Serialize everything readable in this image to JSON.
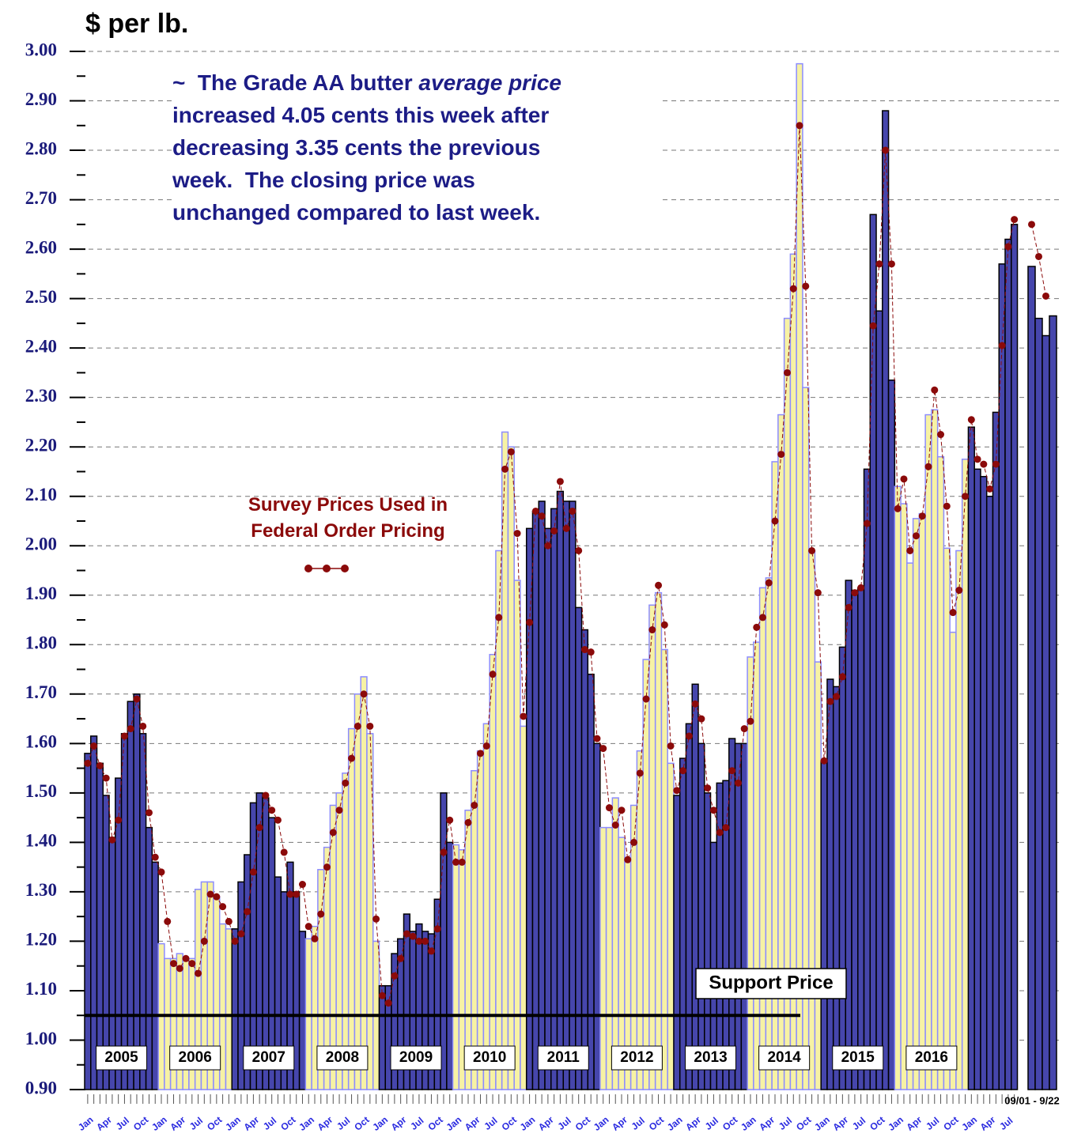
{
  "chart_data": {
    "type": "bar",
    "title": "$ per lb.",
    "annotation": [
      "~  The Grade AA butter ",
      "average price",
      "increased 4.05 cents this week after",
      "decreasing 3.35 cents the previous",
      "week.  The closing price was",
      "unchanged compared to last week."
    ],
    "ylim": [
      0.9,
      3.0
    ],
    "yticks": [
      {
        "value": 0.9,
        "label": "0.90"
      },
      {
        "value": 1.0,
        "label": "1.00"
      },
      {
        "value": 1.1,
        "label": "1.10"
      },
      {
        "value": 1.2,
        "label": "1.20"
      },
      {
        "value": 1.3,
        "label": "1.30"
      },
      {
        "value": 1.4,
        "label": "1.40"
      },
      {
        "value": 1.5,
        "label": "1.50"
      },
      {
        "value": 1.6,
        "label": "1.60"
      },
      {
        "value": 1.7,
        "label": "1.70"
      },
      {
        "value": 1.8,
        "label": "1.80"
      },
      {
        "value": 1.9,
        "label": "1.90"
      },
      {
        "value": 2.0,
        "label": "2.00"
      },
      {
        "value": 2.1,
        "label": "2.10"
      },
      {
        "value": 2.2,
        "label": "2.20"
      },
      {
        "value": 2.3,
        "label": "2.30"
      },
      {
        "value": 2.4,
        "label": "2.40"
      },
      {
        "value": 2.5,
        "label": "2.50"
      },
      {
        "value": 2.6,
        "label": "2.60"
      },
      {
        "value": 2.7,
        "label": "2.70"
      },
      {
        "value": 2.8,
        "label": "2.80"
      },
      {
        "value": 2.9,
        "label": "2.90"
      },
      {
        "value": 3.0,
        "label": "3.00"
      }
    ],
    "grid": true,
    "colors": [
      "#4646ac",
      "#f7f2a4"
    ],
    "years": [
      "2005",
      "2006",
      "2007",
      "2008",
      "2009",
      "2010",
      "2011",
      "2012",
      "2013",
      "2014",
      "2015",
      "2016"
    ],
    "categories": [
      "Jan",
      null,
      null,
      "Apr",
      null,
      null,
      "Jul",
      null,
      null,
      "Oct",
      null,
      null,
      "Jan",
      null,
      null,
      "Apr",
      null,
      null,
      "Jul",
      null,
      null,
      "Oct",
      null,
      null,
      "Jan",
      null,
      null,
      "Apr",
      null,
      null,
      "Jul",
      null,
      null,
      "Oct",
      null,
      null,
      "Jan",
      null,
      null,
      "Apr",
      null,
      null,
      "Jul",
      null,
      null,
      "Oct",
      null,
      null,
      "Jan",
      null,
      null,
      "Apr",
      null,
      null,
      "Jul",
      null,
      null,
      "Oct",
      null,
      null,
      "Jan",
      null,
      null,
      "Apr",
      null,
      null,
      "Jul",
      null,
      null,
      "Oct",
      null,
      null,
      "Jan",
      null,
      null,
      "Apr",
      null,
      null,
      "Jul",
      null,
      null,
      "Oct",
      null,
      null,
      "Jan",
      null,
      null,
      "Apr",
      null,
      null,
      "Jul",
      null,
      null,
      "Oct",
      null,
      null,
      "Jan",
      null,
      null,
      "Apr",
      null,
      null,
      "Jul",
      null,
      null,
      "Oct",
      null,
      null,
      "Jan",
      null,
      null,
      "Apr",
      null,
      null,
      "Jul",
      null,
      null,
      "Oct",
      null,
      null,
      "Jan",
      null,
      null,
      "Apr",
      null,
      null,
      "Jul",
      null,
      null,
      "Oct",
      null,
      null,
      "Jan",
      null,
      null,
      "Apr",
      null,
      null,
      "Jul",
      null,
      null,
      "Oct",
      null,
      null,
      "Jan",
      null,
      null,
      "Apr",
      null,
      null,
      "Jul",
      null
    ],
    "values": [
      1.58,
      1.615,
      1.56,
      1.495,
      1.41,
      1.53,
      1.62,
      1.685,
      1.7,
      1.62,
      1.43,
      1.36,
      1.195,
      1.165,
      1.165,
      1.175,
      1.165,
      1.165,
      1.305,
      1.32,
      1.32,
      1.29,
      1.235,
      1.225,
      1.225,
      1.32,
      1.375,
      1.48,
      1.5,
      1.49,
      1.45,
      1.33,
      1.3,
      1.36,
      1.3,
      1.22,
      1.205,
      1.23,
      1.345,
      1.39,
      1.475,
      1.5,
      1.54,
      1.63,
      1.7,
      1.735,
      1.62,
      1.2,
      1.11,
      1.11,
      1.175,
      1.205,
      1.255,
      1.22,
      1.235,
      1.22,
      1.215,
      1.285,
      1.5,
      1.4,
      1.395,
      1.385,
      1.465,
      1.545,
      1.585,
      1.64,
      1.78,
      1.99,
      2.23,
      2.2,
      1.93,
      1.635,
      2.035,
      2.07,
      2.09,
      2.035,
      2.075,
      2.11,
      2.09,
      2.09,
      1.875,
      1.83,
      1.74,
      1.6,
      1.43,
      1.43,
      1.49,
      1.41,
      1.36,
      1.475,
      1.585,
      1.77,
      1.88,
      1.905,
      1.79,
      1.56,
      1.495,
      1.57,
      1.64,
      1.72,
      1.6,
      1.5,
      1.4,
      1.52,
      1.525,
      1.61,
      1.6,
      1.6,
      1.775,
      1.805,
      1.915,
      1.935,
      2.17,
      2.265,
      2.46,
      2.59,
      2.975,
      2.32,
      1.99,
      1.765,
      1.565,
      1.73,
      1.715,
      1.795,
      1.93,
      1.91,
      1.915,
      2.155,
      2.67,
      2.475,
      2.88,
      2.335,
      2.12,
      2.085,
      1.965,
      2.055,
      2.065,
      2.265,
      2.275,
      2.18,
      1.995,
      1.825,
      1.99,
      2.175,
      2.24,
      2.155,
      2.14,
      2.1,
      2.27,
      2.57,
      2.62,
      2.65
    ],
    "series": [
      {
        "name": "Survey Prices Used in Federal Order Pricing",
        "color": "#8b0a0a",
        "values": [
          1.56,
          1.595,
          1.555,
          1.53,
          1.405,
          1.445,
          1.615,
          1.63,
          1.69,
          1.635,
          1.46,
          1.37,
          1.34,
          1.24,
          1.155,
          1.145,
          1.165,
          1.155,
          1.135,
          1.2,
          1.295,
          1.29,
          1.27,
          1.24,
          1.2,
          1.215,
          1.26,
          1.34,
          1.43,
          1.495,
          1.465,
          1.445,
          1.38,
          1.295,
          1.295,
          1.315,
          1.23,
          1.205,
          1.255,
          1.35,
          1.42,
          1.465,
          1.52,
          1.57,
          1.635,
          1.7,
          1.635,
          1.245,
          1.09,
          1.075,
          1.13,
          1.165,
          1.215,
          1.21,
          1.2,
          1.2,
          1.18,
          1.225,
          1.38,
          1.445,
          1.36,
          1.36,
          1.44,
          1.475,
          1.58,
          1.595,
          1.74,
          1.855,
          2.155,
          2.19,
          2.025,
          1.655,
          1.845,
          2.07,
          2.06,
          2.0,
          2.03,
          2.13,
          2.035,
          2.07,
          1.99,
          1.79,
          1.785,
          1.61,
          1.59,
          1.47,
          1.435,
          1.465,
          1.365,
          1.4,
          1.54,
          1.69,
          1.83,
          1.92,
          1.84,
          1.595,
          1.505,
          1.545,
          1.615,
          1.68,
          1.65,
          1.51,
          1.465,
          1.42,
          1.43,
          1.545,
          1.52,
          1.63,
          1.645,
          1.835,
          1.855,
          1.925,
          2.05,
          2.185,
          2.35,
          2.52,
          2.85,
          2.525,
          1.99,
          1.905,
          1.565,
          1.685,
          1.695,
          1.735,
          1.875,
          1.905,
          1.915,
          2.045,
          2.445,
          2.57,
          2.8,
          2.57,
          2.075,
          2.135,
          1.99,
          2.02,
          2.06,
          2.16,
          2.315,
          2.225,
          2.08,
          1.865,
          1.91,
          2.1,
          2.255,
          2.175,
          2.165,
          2.115,
          2.165,
          2.405,
          2.605,
          2.66
        ]
      }
    ],
    "weekly": {
      "label": "09/01 - 9/22",
      "values": [
        2.565,
        2.46,
        2.425,
        2.465
      ],
      "survey": [
        2.65,
        2.585,
        2.505,
        null
      ]
    },
    "support_price": {
      "label": "Support Price",
      "value": 1.05
    }
  }
}
